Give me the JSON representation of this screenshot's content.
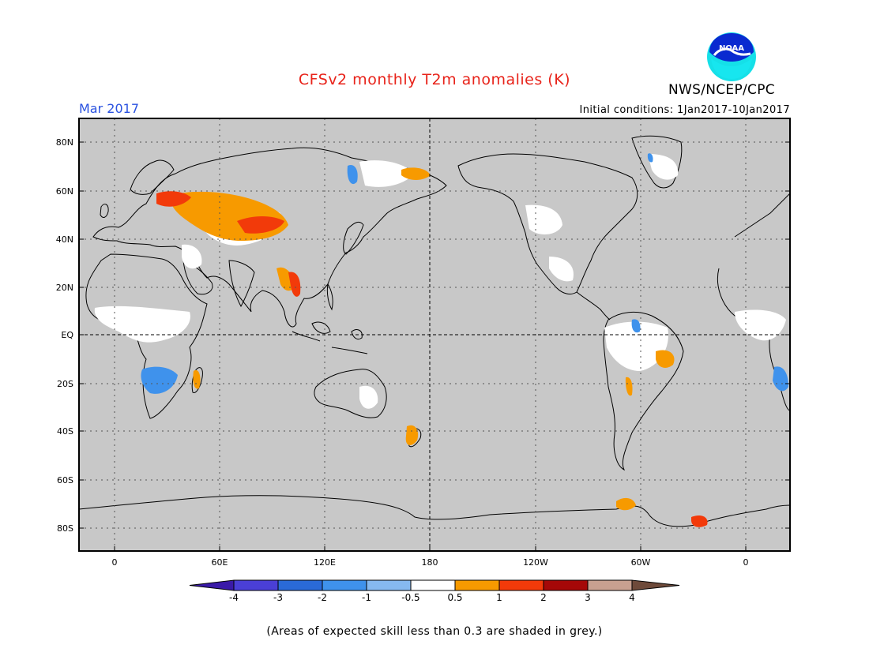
{
  "title": "CFSv2 monthly T2m anomalies (K)",
  "agency": "NWS/NCEP/CPC",
  "logo_text": "NOAA",
  "month_label": "Mar 2017",
  "initial_conditions": "Initial conditions: 1Jan2017-10Jan2017",
  "footnote": "(Areas of expected skill less than 0.3 are shaded in grey.)",
  "axes": {
    "lat_ticks": [
      "80N",
      "60N",
      "40N",
      "20N",
      "EQ",
      "20S",
      "40S",
      "60S",
      "80S"
    ],
    "lon_ticks": [
      "0",
      "60E",
      "120E",
      "180",
      "120W",
      "60W",
      "0"
    ]
  },
  "colorbar": {
    "labels": [
      "-4",
      "-3",
      "-2",
      "-1",
      "-0.5",
      "0.5",
      "1",
      "2",
      "3",
      "4"
    ],
    "colors": [
      "#3a1aa8",
      "#4a3fd6",
      "#2a6ad8",
      "#3f92ec",
      "#86b9f0",
      "#ffffff",
      "#f79a00",
      "#f23a0a",
      "#a50808",
      "#c8a090",
      "#6e4a3a"
    ]
  },
  "colors": {
    "skill_grey": "#c8c8c8",
    "warm_weak": "#f79a00",
    "warm_strong": "#f23a0a",
    "cool": "#3f92ec",
    "near_normal": "#ffffff"
  }
}
